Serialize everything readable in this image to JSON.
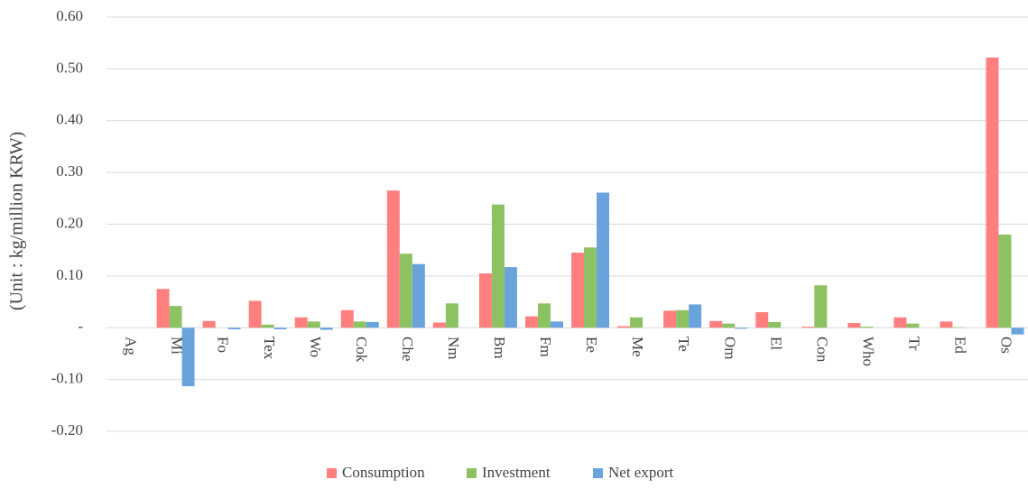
{
  "chart_data": {
    "type": "bar",
    "y_label": "(Unit : kg/million KRW)",
    "categories": [
      "Ag",
      "Mi",
      "Fo",
      "Tex",
      "Wo",
      "Cok",
      "Che",
      "Nm",
      "Bm",
      "Fm",
      "Ee",
      "Me",
      "Te",
      "Om",
      "El",
      "Con",
      "Who",
      "Tr",
      "Ed",
      "Os"
    ],
    "series": [
      {
        "name": "Consumption",
        "color": "#ff7f7f",
        "values": [
          0,
          0.075,
          0.013,
          0.052,
          0.02,
          0.034,
          0.265,
          0.01,
          0.105,
          0.022,
          0.145,
          0.003,
          0.033,
          0.013,
          0.03,
          0.002,
          0.009,
          0.02,
          0.012,
          0.522
        ]
      },
      {
        "name": "Investment",
        "color": "#8dc263",
        "values": [
          0,
          0.042,
          0,
          0.006,
          0.012,
          0.012,
          0.143,
          0.047,
          0.238,
          0.047,
          0.155,
          0.02,
          0.034,
          0.008,
          0.011,
          0.082,
          0.002,
          0.008,
          0.001,
          0.18
        ]
      },
      {
        "name": "Net export",
        "color": "#6aa3dc",
        "values": [
          0,
          -0.113,
          -0.003,
          -0.003,
          -0.004,
          0.011,
          0.123,
          0,
          0.117,
          0.012,
          0.261,
          0,
          0.045,
          -0.002,
          0,
          0,
          0,
          0,
          0,
          -0.013
        ]
      }
    ],
    "ylim": [
      -0.2,
      0.6
    ],
    "yticks": [
      {
        "value": -0.2,
        "label": "-0.20"
      },
      {
        "value": -0.1,
        "label": "-0.10"
      },
      {
        "value": 0,
        "label": "-"
      },
      {
        "value": 0.1,
        "label": "0.10"
      },
      {
        "value": 0.2,
        "label": "0.20"
      },
      {
        "value": 0.3,
        "label": "0.30"
      },
      {
        "value": 0.4,
        "label": "0.40"
      },
      {
        "value": 0.5,
        "label": "0.50"
      },
      {
        "value": 0.6,
        "label": "0.60"
      }
    ],
    "grid": true,
    "legend": "bottom"
  }
}
